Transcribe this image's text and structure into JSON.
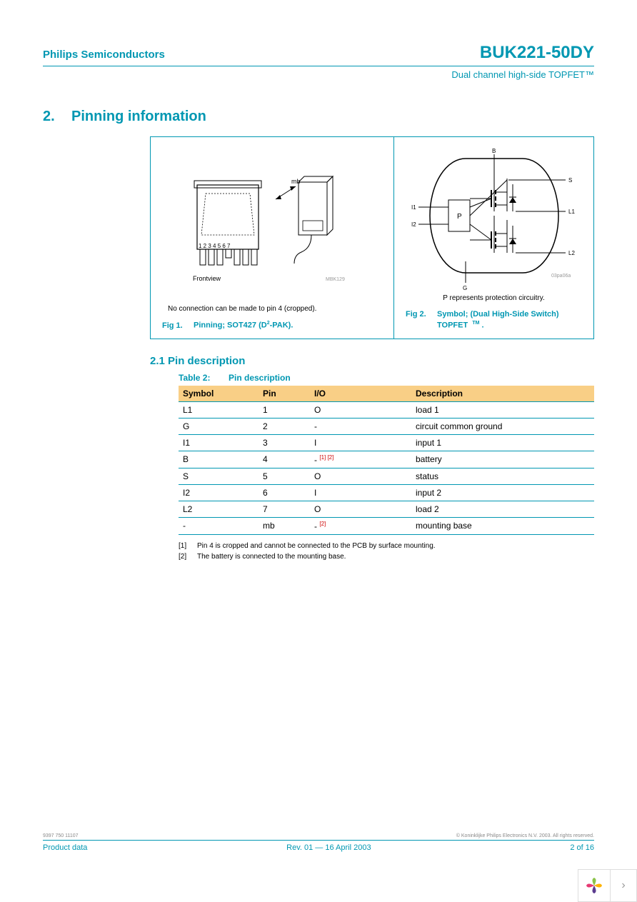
{
  "colors": {
    "teal": "#0097b2",
    "header_bg": "#f9cf86",
    "red_ref": "#cc0000",
    "text": "#000000",
    "gray": "#888888"
  },
  "header": {
    "company": "Philips Semiconductors",
    "part_number": "BUK221-50DY",
    "subtitle": "Dual channel high-side TOPFET™"
  },
  "section": {
    "number": "2.",
    "title": "Pinning information"
  },
  "fig1": {
    "label_frontview": "Frontview",
    "label_mb": "mb",
    "pin_numbers": "1 2 3 4 5 6 7",
    "docref": "MBK129",
    "note": "No connection can be made to pin 4 (cropped).",
    "caption_prefix": "Fig 1.",
    "caption_text": "Pinning; SOT427 (D",
    "caption_sup": "2",
    "caption_suffix": "-PAK)."
  },
  "fig2": {
    "labels": {
      "B": "B",
      "S": "S",
      "I1": "I1",
      "I2": "I2",
      "L1": "L1",
      "L2": "L2",
      "G": "G",
      "P": "P"
    },
    "docref": "03pa06a",
    "note": "P represents protection circuitry.",
    "caption_prefix": "Fig 2.",
    "caption_line1": "Symbol; (Dual High-Side Switch)",
    "caption_line2": "TOPFET",
    "caption_tm": "TM",
    "caption_period": " ."
  },
  "subsection": {
    "number": "2.1",
    "title": "Pin description"
  },
  "table": {
    "title_prefix": "Table 2:",
    "title_text": "Pin description",
    "columns": [
      "Symbol",
      "Pin",
      "I/O",
      "Description"
    ],
    "col_widths": {
      "symbol": 100,
      "pin": 60,
      "io": 130
    },
    "rows": [
      {
        "symbol": "L1",
        "pin": "1",
        "io": "O",
        "refs": "",
        "desc": "load 1"
      },
      {
        "symbol": "G",
        "pin": "2",
        "io": "-",
        "refs": "",
        "desc": "circuit common ground"
      },
      {
        "symbol": "I1",
        "pin": "3",
        "io": "I",
        "refs": "",
        "desc": "input 1"
      },
      {
        "symbol": "B",
        "pin": "4",
        "io": "-",
        "refs": "[1] [2]",
        "desc": "battery"
      },
      {
        "symbol": "S",
        "pin": "5",
        "io": "O",
        "refs": "",
        "desc": "status"
      },
      {
        "symbol": "I2",
        "pin": "6",
        "io": "I",
        "refs": "",
        "desc": "input 2"
      },
      {
        "symbol": "L2",
        "pin": "7",
        "io": "O",
        "refs": "",
        "desc": "load 2"
      },
      {
        "symbol": "-",
        "pin": "mb",
        "io": "-",
        "refs": "[2]",
        "desc": "mounting base"
      }
    ]
  },
  "footnotes": [
    {
      "num": "[1]",
      "text": "Pin 4 is cropped and cannot be connected to the PCB by surface mounting."
    },
    {
      "num": "[2]",
      "text": "The battery is connected to the mounting base."
    }
  ],
  "footer": {
    "docref_left": "9397 750 11107",
    "copyright": "© Koninklijke Philips Electronics N.V. 2003. All rights reserved.",
    "left": "Product data",
    "center": "Rev. 01 — 16 April 2003",
    "right": "2 of 16"
  }
}
